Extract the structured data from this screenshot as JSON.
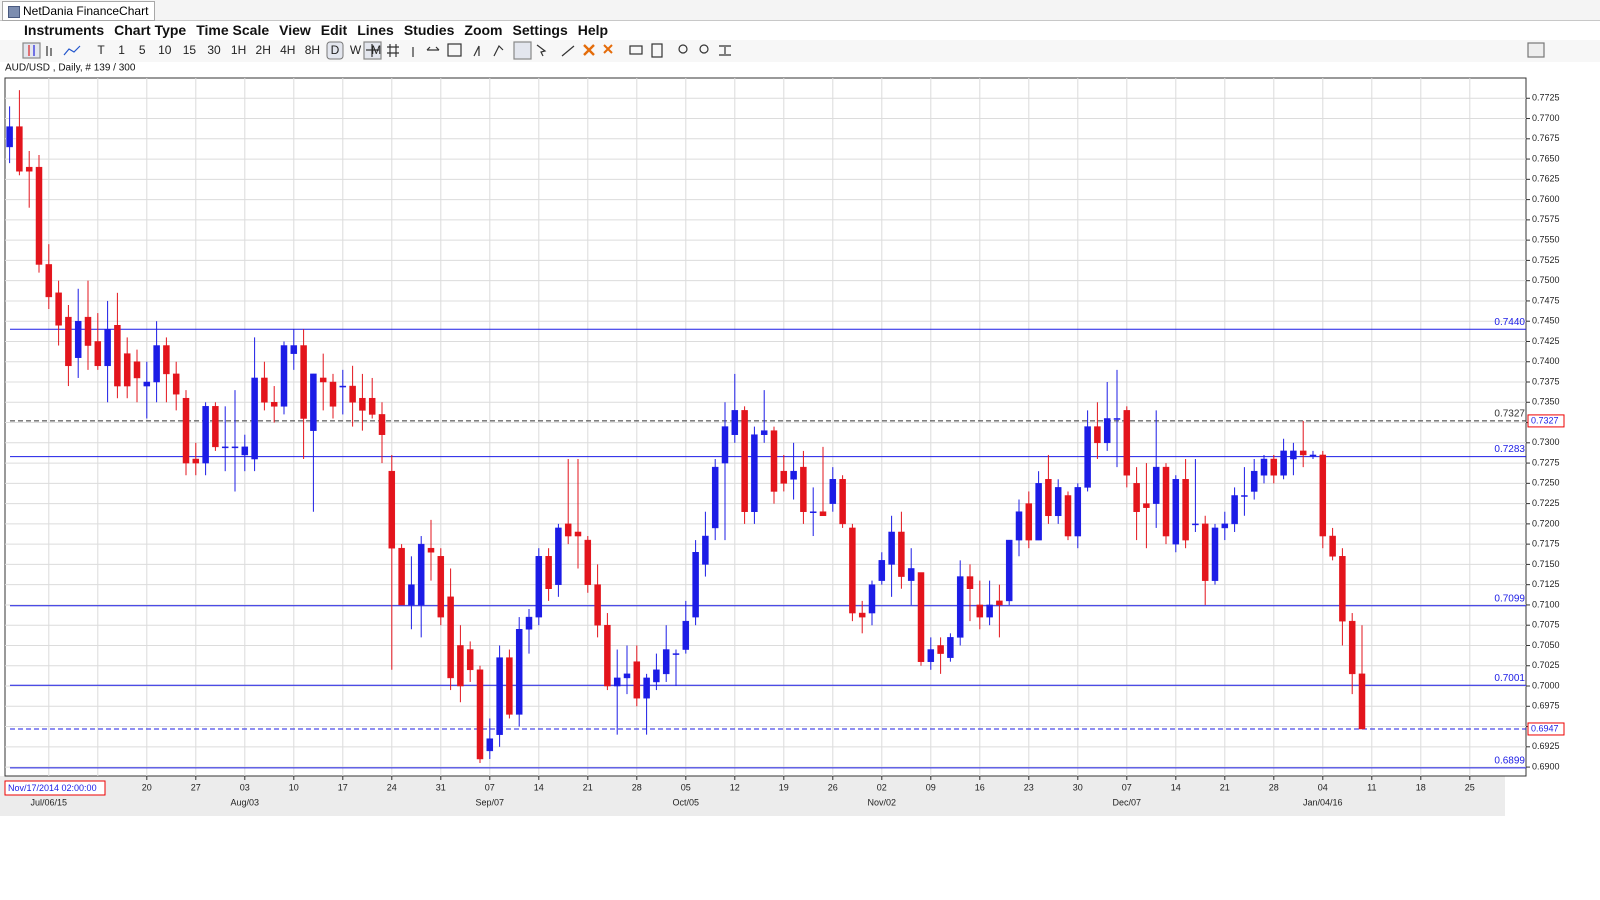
{
  "window": {
    "title": "NetDania FinanceChart"
  },
  "menu": [
    "Instruments",
    "Chart Type",
    "Time Scale",
    "View",
    "Edit",
    "Lines",
    "Studies",
    "Zoom",
    "Settings",
    "Help"
  ],
  "toolbar": {
    "timeframes": [
      "T",
      "1",
      "5",
      "10",
      "15",
      "30",
      "1H",
      "2H",
      "4H",
      "8H",
      "D",
      "W",
      "M"
    ],
    "selected": "D"
  },
  "chart_data": {
    "type": "candlestick",
    "title": "AUD/USD , Daily, # 139 / 300",
    "cursor_label": "Nov/17/2014 02:00:00",
    "up_color": "#1c1ce6",
    "down_color": "#e3141c",
    "grid": true,
    "categories": [
      null,
      null,
      null,
      null,
      null,
      null,
      null,
      null,
      null,
      null,
      null,
      null,
      null,
      null,
      "20",
      null,
      null,
      null,
      null,
      "27",
      null,
      null,
      null,
      null,
      "03",
      null,
      null,
      null,
      null,
      "10",
      null,
      null,
      null,
      null,
      "17",
      null,
      null,
      null,
      null,
      "24",
      null,
      null,
      null,
      null,
      "31",
      null,
      null,
      null,
      null,
      "07",
      null,
      null,
      null,
      null,
      "14",
      null,
      null,
      null,
      null,
      "21",
      null,
      null,
      null,
      null,
      "28",
      null,
      null,
      null,
      null,
      "05",
      null,
      null,
      null,
      null,
      "12",
      null,
      null,
      null,
      null,
      "19",
      null,
      null,
      null,
      null,
      "26",
      null,
      null,
      null,
      null,
      "02",
      null,
      null,
      null,
      null,
      "09",
      null,
      null,
      null,
      null,
      "16",
      null,
      null,
      null,
      null,
      "23",
      null,
      null,
      null,
      null,
      "30",
      null,
      null,
      null,
      null,
      "07",
      null,
      null,
      null,
      null,
      "14",
      null,
      null,
      null,
      null,
      "21",
      null,
      null,
      null,
      null,
      "28",
      null,
      null,
      null,
      null,
      "04",
      null,
      null,
      null,
      null,
      "11",
      null,
      null,
      null,
      null,
      "18",
      null,
      null,
      null,
      null,
      "25",
      null,
      null,
      null,
      null
    ],
    "month_categories": [
      null,
      null,
      null,
      null,
      "Jul/06/15",
      null,
      null,
      null,
      null,
      null,
      null,
      null,
      null,
      null,
      null,
      null,
      null,
      null,
      null,
      null,
      null,
      null,
      null,
      null,
      "Aug/03",
      null,
      null,
      null,
      null,
      null,
      null,
      null,
      null,
      null,
      null,
      null,
      null,
      null,
      null,
      null,
      null,
      null,
      null,
      null,
      null,
      null,
      null,
      null,
      null,
      "Sep/07",
      null,
      null,
      null,
      null,
      null,
      null,
      null,
      null,
      null,
      null,
      null,
      null,
      null,
      null,
      null,
      null,
      null,
      null,
      null,
      "Oct/05",
      null,
      null,
      null,
      null,
      null,
      null,
      null,
      null,
      null,
      null,
      null,
      null,
      null,
      null,
      null,
      null,
      null,
      null,
      null,
      "Nov/02",
      null,
      null,
      null,
      null,
      null,
      null,
      null,
      null,
      null,
      null,
      null,
      null,
      null,
      null,
      null,
      null,
      null,
      null,
      null,
      null,
      null,
      null,
      null,
      null,
      "Dec/07",
      null,
      null,
      null,
      null,
      null,
      null,
      null,
      null,
      null,
      null,
      null,
      null,
      null,
      null,
      null,
      null,
      null,
      null,
      null,
      "Jan/04/16",
      null,
      null,
      null,
      null,
      null,
      null,
      null,
      null,
      null,
      null,
      null,
      null,
      null,
      null,
      null,
      null,
      null,
      null,
      null
    ],
    "open": [
      0.7665,
      0.769,
      0.764,
      0.764,
      0.752,
      0.7485,
      0.7455,
      0.7405,
      0.7455,
      0.7425,
      0.7395,
      0.7445,
      0.741,
      0.74,
      0.737,
      0.7375,
      0.742,
      0.7385,
      0.7355,
      0.728,
      0.7275,
      0.7345,
      0.7295,
      0.7295,
      0.7285,
      0.728,
      0.738,
      0.735,
      0.7345,
      0.741,
      0.742,
      0.7315,
      0.738,
      0.7375,
      0.737,
      0.737,
      0.7355,
      0.7355,
      0.7335,
      0.7265,
      0.717,
      0.71,
      0.71,
      0.717,
      0.716,
      0.711,
      0.705,
      0.7045,
      0.702,
      0.692,
      0.694,
      0.7035,
      0.6965,
      0.707,
      0.7085,
      0.716,
      0.7125,
      0.72,
      0.719,
      0.718,
      0.7125,
      0.7075,
      0.7,
      0.701,
      0.703,
      0.6985,
      0.7005,
      0.7015,
      0.704,
      0.7045,
      0.7085,
      0.715,
      0.7195,
      0.7275,
      0.731,
      0.734,
      0.7215,
      0.731,
      0.7315,
      0.7265,
      0.7255,
      0.727,
      0.7215,
      0.7215,
      0.7225,
      0.7255,
      0.7195,
      0.709,
      0.709,
      0.713,
      0.715,
      0.719,
      0.713,
      0.714,
      0.703,
      0.705,
      0.7035,
      0.706,
      0.7135,
      0.71,
      0.7085,
      0.7105,
      0.7105,
      0.718,
      0.7225,
      0.718,
      0.7255,
      0.721,
      0.7235,
      0.7185,
      0.7245,
      0.732,
      0.73,
      0.733,
      0.734,
      0.725,
      0.7225,
      0.7225,
      0.727,
      0.7175,
      0.7255,
      0.72,
      0.72,
      0.713,
      0.7195,
      0.72,
      0.7235,
      0.724,
      0.726,
      0.728,
      0.726,
      0.728,
      0.729,
      0.7285,
      0.7285,
      0.7185,
      0.716,
      0.708,
      0.7015,
      null,
      null,
      null,
      null,
      null,
      null,
      null,
      null,
      null,
      null,
      null,
      null,
      null,
      null,
      null
    ],
    "high": [
      0.7715,
      0.7735,
      0.766,
      0.7655,
      0.7545,
      0.75,
      0.747,
      0.749,
      0.75,
      0.746,
      0.7475,
      0.7485,
      0.743,
      0.7415,
      0.74,
      0.745,
      0.743,
      0.74,
      0.7365,
      0.73,
      0.735,
      0.735,
      0.7345,
      0.7365,
      0.731,
      0.743,
      0.74,
      0.737,
      0.7425,
      0.744,
      0.744,
      0.7385,
      0.741,
      0.7385,
      0.739,
      0.7395,
      0.7385,
      0.738,
      0.735,
      0.7285,
      0.7175,
      0.716,
      0.7185,
      0.7205,
      0.717,
      0.7145,
      0.7075,
      0.7055,
      0.7025,
      0.696,
      0.705,
      0.7045,
      0.7085,
      0.7095,
      0.717,
      0.717,
      0.72,
      0.728,
      0.728,
      0.7185,
      0.715,
      0.709,
      0.7045,
      0.705,
      0.705,
      0.7015,
      0.704,
      0.7075,
      0.7045,
      0.7105,
      0.718,
      0.7215,
      0.728,
      0.735,
      0.7385,
      0.7345,
      0.732,
      0.7365,
      0.732,
      0.7285,
      0.73,
      0.729,
      0.7245,
      0.7295,
      0.727,
      0.726,
      0.72,
      0.7105,
      0.713,
      0.7165,
      0.721,
      0.7215,
      0.717,
      0.714,
      0.706,
      0.706,
      0.7065,
      0.7155,
      0.715,
      0.713,
      0.713,
      0.7125,
      0.718,
      0.723,
      0.724,
      0.7265,
      0.7285,
      0.7255,
      0.724,
      0.725,
      0.734,
      0.735,
      0.7375,
      0.739,
      0.7345,
      0.727,
      0.7275,
      0.734,
      0.7275,
      0.726,
      0.728,
      0.728,
      0.721,
      0.72,
      0.7215,
      0.7245,
      0.727,
      0.728,
      0.7285,
      0.7285,
      0.7305,
      0.73,
      0.7327,
      0.729,
      0.729,
      0.7195,
      0.717,
      0.709,
      0.7075,
      null,
      null,
      null,
      null,
      null,
      null,
      null,
      null,
      null,
      null,
      null,
      null,
      null,
      null,
      null
    ],
    "low": [
      0.7645,
      0.763,
      0.759,
      0.751,
      0.7465,
      0.742,
      0.737,
      0.738,
      0.739,
      0.739,
      0.735,
      0.7355,
      0.7355,
      0.735,
      0.733,
      0.735,
      0.735,
      0.734,
      0.726,
      0.726,
      0.726,
      0.729,
      0.7265,
      0.724,
      0.7265,
      0.7265,
      0.734,
      0.7325,
      0.7335,
      0.739,
      0.728,
      0.7215,
      0.734,
      0.733,
      0.7335,
      0.732,
      0.7315,
      0.733,
      0.7275,
      0.702,
      0.71,
      0.707,
      0.706,
      0.713,
      0.7075,
      0.6995,
      0.698,
      0.7005,
      0.6905,
      0.691,
      0.6925,
      0.696,
      0.695,
      0.704,
      0.7075,
      0.7105,
      0.711,
      0.7175,
      0.7145,
      0.7115,
      0.706,
      0.6995,
      0.694,
      0.699,
      0.6975,
      0.694,
      0.6995,
      0.7005,
      0.7,
      0.704,
      0.7075,
      0.7135,
      0.718,
      0.718,
      0.73,
      0.72,
      0.72,
      0.73,
      0.7225,
      0.724,
      0.723,
      0.72,
      0.7185,
      0.721,
      0.7215,
      0.7195,
      0.708,
      0.7065,
      0.7075,
      0.7125,
      0.711,
      0.712,
      0.71,
      0.7025,
      0.702,
      0.7015,
      0.703,
      0.705,
      0.708,
      0.707,
      0.7075,
      0.706,
      0.71,
      0.716,
      0.717,
      0.718,
      0.72,
      0.72,
      0.718,
      0.717,
      0.724,
      0.728,
      0.729,
      0.727,
      0.7245,
      0.718,
      0.717,
      0.7195,
      0.7175,
      0.7165,
      0.717,
      0.719,
      0.71,
      0.7125,
      0.718,
      0.719,
      0.721,
      0.723,
      0.725,
      0.725,
      0.7255,
      0.726,
      0.727,
      0.728,
      0.717,
      0.7155,
      0.705,
      0.699,
      0.6947,
      null,
      null,
      null,
      null,
      null,
      null,
      null,
      null,
      null,
      null,
      null,
      null,
      null,
      null,
      null
    ],
    "close": [
      0.769,
      0.7635,
      0.7635,
      0.752,
      0.748,
      0.7445,
      0.7395,
      0.745,
      0.742,
      0.7395,
      0.744,
      0.737,
      0.737,
      0.738,
      0.7375,
      0.742,
      0.7385,
      0.736,
      0.7275,
      0.7275,
      0.7345,
      0.7295,
      0.7295,
      0.7295,
      0.7295,
      0.738,
      0.735,
      0.7345,
      0.742,
      0.742,
      0.733,
      0.7385,
      0.7375,
      0.7345,
      0.737,
      0.735,
      0.734,
      0.7335,
      0.731,
      0.717,
      0.71,
      0.7125,
      0.7175,
      0.7165,
      0.7085,
      0.701,
      0.7,
      0.702,
      0.691,
      0.6935,
      0.7035,
      0.6965,
      0.707,
      0.7085,
      0.716,
      0.712,
      0.7195,
      0.7185,
      0.7185,
      0.7125,
      0.7075,
      0.7,
      0.701,
      0.7015,
      0.6985,
      0.701,
      0.702,
      0.7045,
      0.704,
      0.708,
      0.7165,
      0.7185,
      0.727,
      0.732,
      0.734,
      0.7215,
      0.731,
      0.7315,
      0.724,
      0.725,
      0.7265,
      0.7215,
      0.7215,
      0.721,
      0.7255,
      0.72,
      0.709,
      0.7085,
      0.7125,
      0.7155,
      0.719,
      0.7135,
      0.7145,
      0.703,
      0.7045,
      0.704,
      0.706,
      0.7135,
      0.712,
      0.7085,
      0.71,
      0.71,
      0.718,
      0.7215,
      0.718,
      0.725,
      0.721,
      0.7245,
      0.7185,
      0.7245,
      0.732,
      0.73,
      0.733,
      0.733,
      0.726,
      0.7215,
      0.722,
      0.727,
      0.7185,
      0.7255,
      0.718,
      0.72,
      0.713,
      0.7195,
      0.72,
      0.7235,
      0.7235,
      0.7265,
      0.728,
      0.726,
      0.729,
      0.729,
      0.7285,
      0.7285,
      0.7185,
      0.716,
      0.708,
      0.7015,
      0.6947,
      null,
      null,
      null,
      null,
      null,
      null,
      null,
      null,
      null,
      null,
      null,
      null,
      null,
      null,
      null
    ],
    "ylim": [
      0.6889,
      0.775
    ],
    "yticks": [
      {
        "value": 0.69,
        "label": "0.6900"
      },
      {
        "value": 0.6925,
        "label": "0.6925"
      },
      {
        "value": 0.695,
        "label": "0.6950"
      },
      {
        "value": 0.6975,
        "label": "0.6975"
      },
      {
        "value": 0.7,
        "label": "0.7000"
      },
      {
        "value": 0.7025,
        "label": "0.7025"
      },
      {
        "value": 0.705,
        "label": "0.7050"
      },
      {
        "value": 0.7075,
        "label": "0.7075"
      },
      {
        "value": 0.71,
        "label": "0.7100"
      },
      {
        "value": 0.7125,
        "label": "0.7125"
      },
      {
        "value": 0.715,
        "label": "0.7150"
      },
      {
        "value": 0.7175,
        "label": "0.7175"
      },
      {
        "value": 0.72,
        "label": "0.7200"
      },
      {
        "value": 0.7225,
        "label": "0.7225"
      },
      {
        "value": 0.725,
        "label": "0.7250"
      },
      {
        "value": 0.7275,
        "label": "0.7275"
      },
      {
        "value": 0.73,
        "label": "0.7300"
      },
      {
        "value": 0.7325,
        "label": "0.7325"
      },
      {
        "value": 0.735,
        "label": "0.7350"
      },
      {
        "value": 0.7375,
        "label": "0.7375"
      },
      {
        "value": 0.74,
        "label": "0.7400"
      },
      {
        "value": 0.7425,
        "label": "0.7425"
      },
      {
        "value": 0.745,
        "label": "0.7450"
      },
      {
        "value": 0.7475,
        "label": "0.7475"
      },
      {
        "value": 0.75,
        "label": "0.7500"
      },
      {
        "value": 0.7525,
        "label": "0.7525"
      },
      {
        "value": 0.755,
        "label": "0.7550"
      },
      {
        "value": 0.7575,
        "label": "0.7575"
      },
      {
        "value": 0.76,
        "label": "0.7600"
      },
      {
        "value": 0.7625,
        "label": "0.7625"
      },
      {
        "value": 0.765,
        "label": "0.7650"
      },
      {
        "value": 0.7675,
        "label": "0.7675"
      },
      {
        "value": 0.77,
        "label": "0.7700"
      },
      {
        "value": 0.7725,
        "label": "0.7725"
      }
    ],
    "levels": [
      {
        "value": 0.744,
        "label": "0.7440",
        "color": "#1c1ce6",
        "dashed": false,
        "inline_label": true,
        "axis_box": false
      },
      {
        "value": 0.7327,
        "label": "0.7327",
        "color": "#333333",
        "dashed": true,
        "inline_label": true,
        "axis_box": true
      },
      {
        "value": 0.7283,
        "label": "0.7283",
        "color": "#1c1ce6",
        "dashed": false,
        "inline_label": true,
        "axis_box": false
      },
      {
        "value": 0.7099,
        "label": "0.7099",
        "color": "#1c1ce6",
        "dashed": false,
        "inline_label": true,
        "axis_box": false
      },
      {
        "value": 0.7001,
        "label": "0.7001",
        "color": "#1c1ce6",
        "dashed": false,
        "inline_label": true,
        "axis_box": false
      },
      {
        "value": 0.6947,
        "label": "0.6947",
        "color": "#1c1ce6",
        "dashed": true,
        "inline_label": false,
        "axis_box": true
      },
      {
        "value": 0.6899,
        "label": "0.6899",
        "color": "#1c1ce6",
        "dashed": false,
        "inline_label": true,
        "axis_box": false
      }
    ]
  }
}
